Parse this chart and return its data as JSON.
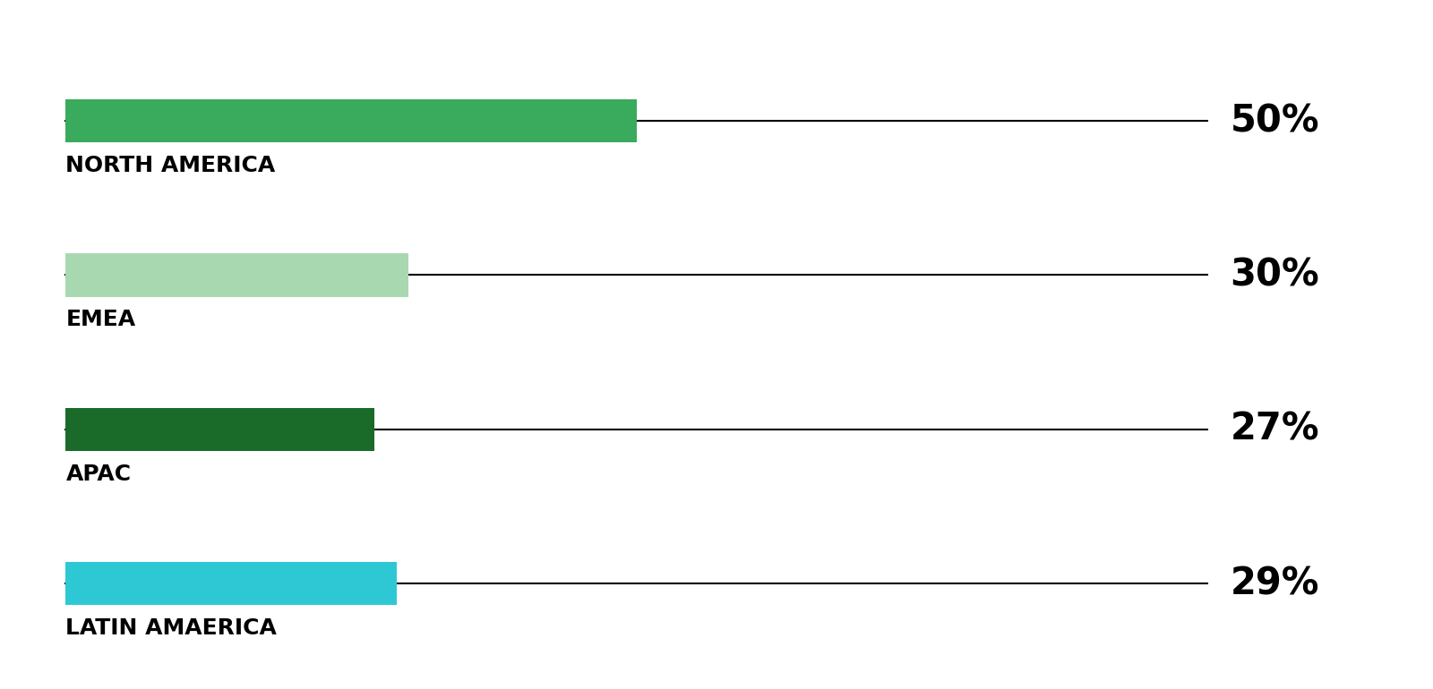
{
  "categories": [
    "NORTH AMERICA",
    "EMEA",
    "APAC",
    "LATIN AMAERICA"
  ],
  "values": [
    50,
    30,
    27,
    29
  ],
  "bar_colors": [
    "#3aaa5c",
    "#a8d8b0",
    "#1a6b2a",
    "#2ec8d4"
  ],
  "line_color": "#000000",
  "label_color": "#000000",
  "background_color": "#ffffff",
  "max_value": 100,
  "bar_height": 0.28,
  "label_fontsize": 18,
  "pct_fontsize": 30,
  "label_fontweight": "bold",
  "pct_fontweight": "bold",
  "line_width": 1.5
}
